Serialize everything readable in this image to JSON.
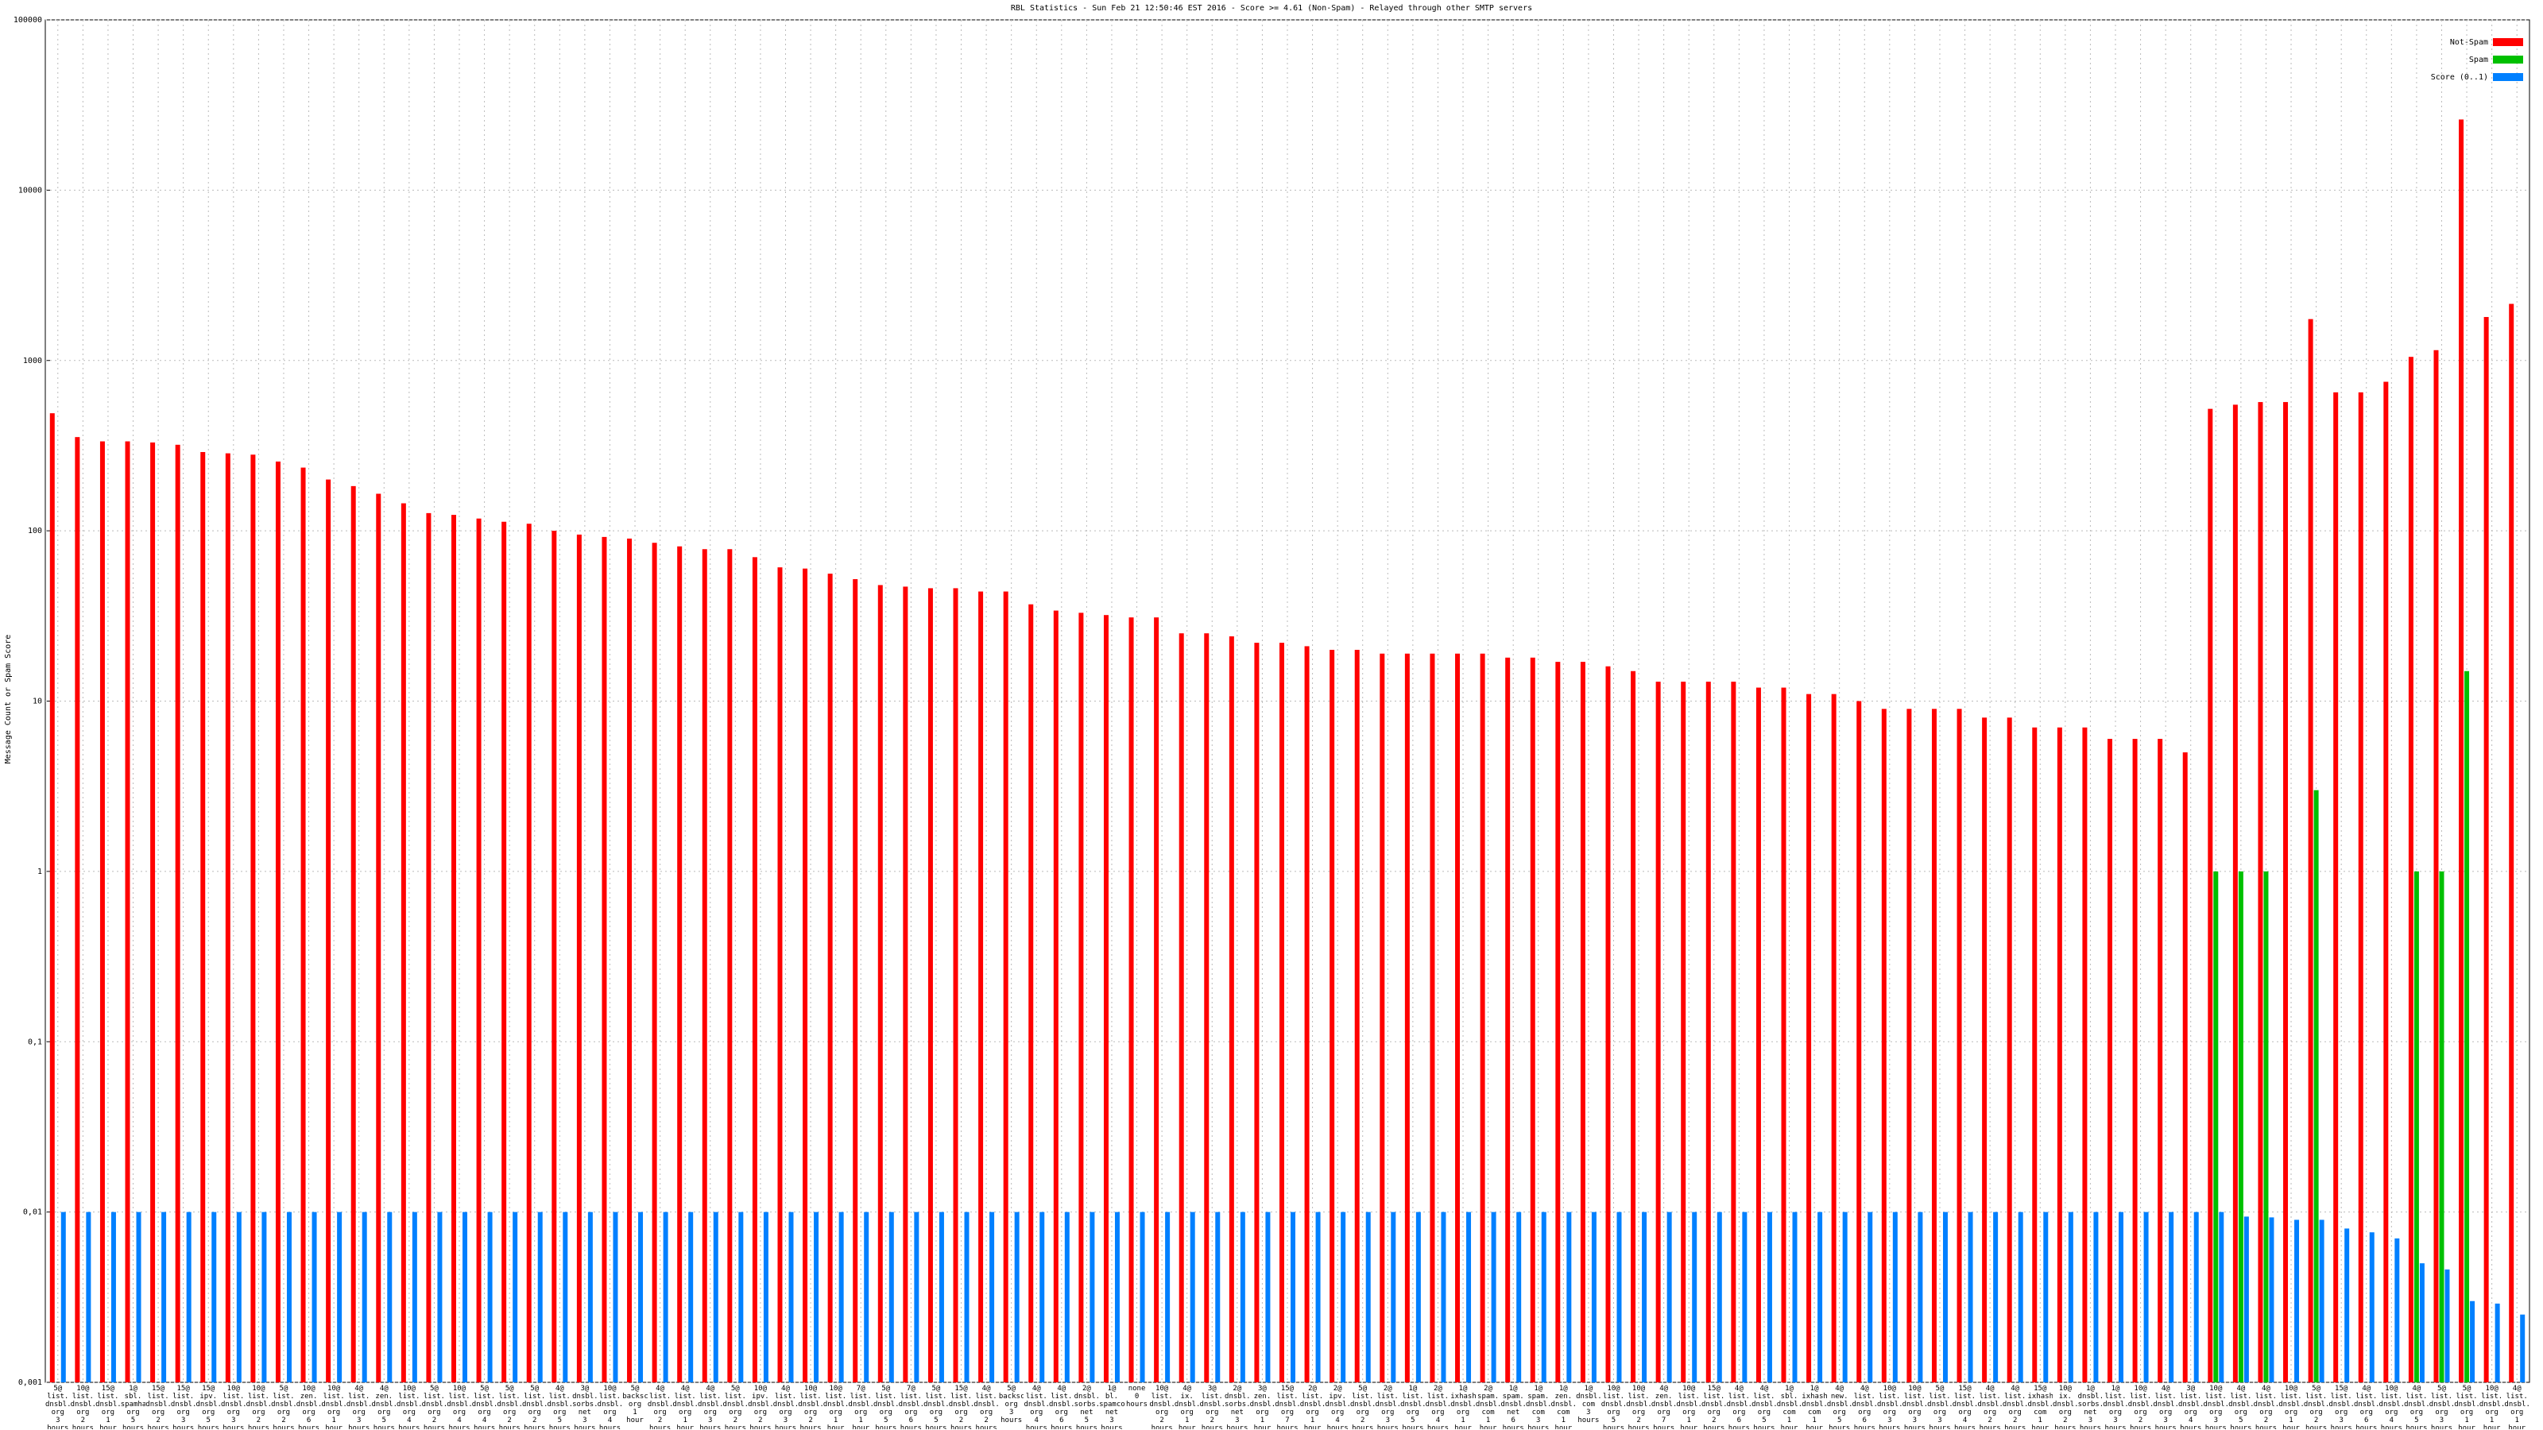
{
  "chart_data": {
    "type": "bar",
    "log_scale": true,
    "grid": true,
    "legend": "upper right",
    "title": "RBL Statistics - Sun Feb 21 12:50:46 EST 2016 - Score >= 4.61 (Non-Spam) - Relayed through other SMTP servers",
    "y_label": "Message Count or Spam Score",
    "ylim": [
      0.001,
      100000
    ],
    "yticks": [
      {
        "value": 0.001,
        "label": "0,001"
      },
      {
        "value": 0.01,
        "label": "0,01"
      },
      {
        "value": 0.1,
        "label": "0,1"
      },
      1,
      10,
      100,
      1000,
      10000,
      100000
    ],
    "categories": [
      "5@\nlist.\ndnsbl.\norg\n3 hours",
      "10@\nlist.\ndnsbl.\norg\n2 hours",
      "15@\nlist.\ndnsbl.\norg\n1 hour",
      "1@\nsbl.\nspamhaus\norg\n5 hours",
      "15@\nlist.\ndnsbl.\norg\n2 hours",
      "15@\nlist.\ndnsbl.\norg\n3 hours",
      "15@\nipv.\ndnsbl.\norg\n5 hours",
      "10@\nlist.\ndnsbl.\norg\n3 hours",
      "10@\nlist.\ndnsbl.\norg\n2 hours",
      "5@\nlist.\ndnsbl.\norg\n2 hours",
      "10@\nzen.\ndnsbl.\norg\n6 hours",
      "10@\nlist.\ndnsbl.\norg\n1 hour",
      "4@\nlist.\ndnsbl.\norg\n3 hours",
      "4@\nzen.\ndnsbl.\norg\n5 hours",
      "10@\nlist.\ndnsbl.\norg\n4 hours",
      "5@\nlist.\ndnsbl.\norg\n2 hours",
      "10@\nlist.\ndnsbl.\norg\n4 hours",
      "5@\nlist.\ndnsbl.\norg\n4 hours",
      "5@\nlist.\ndnsbl.\norg\n2 hours",
      "5@\nlist.\ndnsbl.\norg\n2 hours",
      "4@\nlist.\ndnsbl.\norg\n5 hours",
      "3@\ndnsbl.\nsorbs.\nnet\n3 hours",
      "10@\nlist.\ndnsbl.\norg\n4 hours",
      "5@\nbackscatterer\norg\n1 hour",
      "4@\nlist.\ndnsbl.\norg\n2 hours",
      "4@\nlist.\ndnsbl.\norg\n1 hour",
      "4@\nlist.\ndnsbl.\norg\n3 hours",
      "5@\nlist.\ndnsbl.\norg\n2 hours",
      "10@\nipv.\ndnsbl.\norg\n2 hours",
      "4@\nlist.\ndnsbl.\norg\n3 hours",
      "10@\nlist.\ndnsbl.\norg\n2 hours",
      "10@\nlist.\ndnsbl.\norg\n1 hour",
      "7@\nlist.\ndnsbl.\norg\n1 hour",
      "5@\nlist.\ndnsbl.\norg\n5 hours",
      "7@\nlist.\ndnsbl.\norg\n6 hours",
      "5@\nlist.\ndnsbl.\norg\n5 hours",
      "15@\nlist.\ndnsbl.\norg\n2 hours",
      "4@\nlist.\ndnsbl.\norg\n2 hours",
      "5@\nbackscatterer\norg\n3 hours",
      "4@\nlist.\ndnsbl.\norg\n4 hours",
      "4@\nlist.\ndnsbl.\norg\n6 hours",
      "2@\ndnsbl.\nsorbs.\nnet\n5 hours",
      "1@\nbl.\nspamcop\nnet\n3 hours",
      "none\n0 hours",
      "10@\nlist.\ndnsbl.\norg\n2 hours",
      "4@\nix.\ndnsbl.\norg\n1 hour",
      "3@\nlist.\ndnsbl.\norg\n2 hours",
      "2@\ndnsbl.\nsorbs.\nnet\n3 hours",
      "3@\nzen.\ndnsbl.\norg\n1 hour",
      "15@\nlist.\ndnsbl.\norg\n7 hours",
      "2@\nlist.\ndnsbl.\norg\n1 hour",
      "2@\nipv.\ndnsbl.\norg\n4 hours",
      "5@\nlist.\ndnsbl.\norg\n2 hours",
      "2@\nlist.\ndnsbl.\norg\n3 hours",
      "1@\nlist.\ndnsbl.\norg\n5 hours",
      "2@\nlist.\ndnsbl.\norg\n4 hours",
      "1@\nixhash.\ndnsbl.\norg\n1 hour",
      "2@\nspam.\ndnsbl.\ncom\n1 hour",
      "1@\nspam.\ndnsbl.\nnet\n6 hours",
      "1@\nspam.\ndnsbl.\ncom\n3 hours",
      "1@\nzen.\ndnsbl.\ncom\n1 hour",
      "1@\ndnsbl.\ncom\n3 hours",
      "10@\nlist.\ndnsbl.\norg\n5 hours",
      "10@\nlist.\ndnsbl.\norg\n2 hours",
      "4@\nzen.\ndnsbl.\norg\n7 hours",
      "10@\nlist.\ndnsbl.\norg\n1 hour",
      "15@\nlist.\ndnsbl.\norg\n2 hours",
      "4@\nlist.\ndnsbl.\norg\n6 hours",
      "4@\nlist.\ndnsbl.\norg\n5 hours",
      "1@\nsbl.\ndnsbl.\ncom\n1 hour",
      "1@\nixhash.\ndnsbl.\ncom\n1 hour",
      "4@\nnew.\ndnsbl.\norg\n5 hours",
      "4@\nlist.\ndnsbl.\norg\n6 hours",
      "10@\nlist.\ndnsbl.\norg\n3 hours",
      "10@\nlist.\ndnsbl.\norg\n3 hours",
      "5@\nlist.\ndnsbl.\norg\n3 hours",
      "15@\nlist.\ndnsbl.\norg\n4 hours",
      "4@\nlist.\ndnsbl.\norg\n2 hours",
      "4@\nlist.\ndnsbl.\norg\n2 hours",
      "15@\nixhash.\ndnsbl.\ncom\n1 hour",
      "10@\nix.\ndnsbl.\norg\n2 hours",
      "1@\ndnsbl.\nsorbs.\nnet\n3 hours",
      "1@\nlist.\ndnsbl.\norg\n3 hours",
      "10@\nlist.\ndnsbl.\norg\n2 hours",
      "4@\nlist.\ndnsbl.\norg\n3 hours",
      "3@\nlist.\ndnsbl.\norg\n4 hours",
      "10@\nlist.\ndnsbl.\norg\n3 hours",
      "4@\nlist.\ndnsbl.\norg\n5 hours",
      "4@\nlist.\ndnsbl.\norg\n2 hours",
      "10@\nlist.\ndnsbl.\norg\n1 hour",
      "5@\nlist.\ndnsbl.\norg\n2 hours",
      "15@\nlist.\ndnsbl.\norg\n3 hours",
      "4@\nlist.\ndnsbl.\norg\n6 hours",
      "10@\nlist.\ndnsbl.\norg\n4 hours",
      "4@\nlist.\ndnsbl.\norg\n5 hours",
      "5@\nlist.\ndnsbl.\norg\n3 hours",
      "5@\nlist.\ndnsbl.\norg\n1 hour",
      "10@\nlist.\ndnsbl.\norg\n1 hour",
      "4@\nlist.\ndnsbl.\norg\n1 hour"
    ],
    "series": [
      {
        "name": "Not-Spam",
        "color": "#ff0000",
        "values": [
          490,
          355,
          335,
          335,
          330,
          320,
          290,
          285,
          280,
          255,
          235,
          200,
          183,
          165,
          145,
          127,
          124,
          118,
          113,
          110,
          100,
          95,
          92,
          90,
          85,
          81,
          78,
          78,
          70,
          61,
          60,
          56,
          52,
          48,
          47,
          46,
          46,
          44,
          44,
          37,
          34,
          33,
          32,
          31,
          31,
          25,
          25,
          24,
          22,
          22,
          21,
          20,
          20,
          19,
          19,
          19,
          19,
          19,
          18,
          18,
          17,
          17,
          16,
          15,
          13,
          13,
          13,
          13,
          12,
          12,
          11,
          11,
          10,
          9,
          9,
          9,
          9,
          8,
          8,
          7,
          7,
          7,
          6,
          6,
          6,
          5,
          520,
          550,
          570,
          570,
          1750,
          650,
          650,
          750,
          1050,
          1150,
          26000,
          1800,
          2150
        ]
      },
      {
        "name": "Spam",
        "color": "#00c000",
        "values": [
          null,
          null,
          null,
          null,
          null,
          null,
          null,
          null,
          null,
          null,
          null,
          null,
          null,
          null,
          null,
          null,
          null,
          null,
          null,
          null,
          null,
          null,
          null,
          null,
          null,
          null,
          null,
          null,
          null,
          null,
          null,
          null,
          null,
          null,
          null,
          null,
          null,
          null,
          null,
          null,
          null,
          null,
          null,
          null,
          null,
          null,
          null,
          null,
          null,
          null,
          null,
          null,
          null,
          null,
          null,
          null,
          null,
          null,
          null,
          null,
          null,
          null,
          null,
          null,
          null,
          null,
          null,
          null,
          null,
          null,
          null,
          null,
          null,
          null,
          null,
          null,
          null,
          null,
          null,
          null,
          null,
          null,
          null,
          null,
          null,
          null,
          1,
          1,
          1,
          null,
          3,
          null,
          null,
          null,
          1,
          1,
          15,
          null,
          null
        ]
      },
      {
        "name": "Score (0..1)",
        "color": "#0080ff",
        "values": [
          0.01,
          0.01,
          0.01,
          0.01,
          0.01,
          0.01,
          0.01,
          0.01,
          0.01,
          0.01,
          0.01,
          0.01,
          0.01,
          0.01,
          0.01,
          0.01,
          0.01,
          0.01,
          0.01,
          0.01,
          0.01,
          0.01,
          0.01,
          0.01,
          0.01,
          0.01,
          0.01,
          0.01,
          0.01,
          0.01,
          0.01,
          0.01,
          0.01,
          0.01,
          0.01,
          0.01,
          0.01,
          0.01,
          0.01,
          0.01,
          0.01,
          0.01,
          0.01,
          0.01,
          0.01,
          0.01,
          0.01,
          0.01,
          0.01,
          0.01,
          0.01,
          0.01,
          0.01,
          0.01,
          0.01,
          0.01,
          0.01,
          0.01,
          0.01,
          0.01,
          0.01,
          0.01,
          0.01,
          0.01,
          0.01,
          0.01,
          0.01,
          0.01,
          0.01,
          0.01,
          0.01,
          0.01,
          0.01,
          0.01,
          0.01,
          0.01,
          0.01,
          0.01,
          0.01,
          0.01,
          0.01,
          0.01,
          0.01,
          0.01,
          0.01,
          0.01,
          0.01,
          0.0094,
          0.0093,
          0.009,
          0.009,
          0.008,
          0.0076,
          0.007,
          0.005,
          0.0046,
          0.003,
          0.0029,
          0.0025
        ]
      }
    ]
  }
}
